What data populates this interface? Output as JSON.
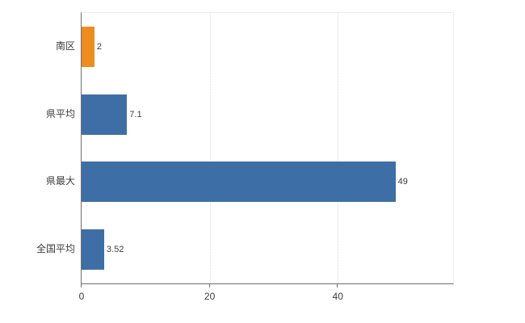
{
  "chart_data": {
    "type": "bar",
    "orientation": "horizontal",
    "title": "",
    "categories": [
      "南区",
      "県平均",
      "県最大",
      "全国平均"
    ],
    "values": [
      2,
      7.1,
      49,
      3.52
    ],
    "value_labels": [
      "2",
      "7.1",
      "49",
      "3.52"
    ],
    "bar_colors": [
      "#ef8c1e",
      "#3d6fa6",
      "#3d6fa6",
      "#3d6fa6"
    ],
    "xlim": [
      0,
      58
    ],
    "xticks": [
      0,
      20,
      40
    ],
    "xtick_labels": [
      "0",
      "20",
      "40"
    ],
    "grid": true,
    "legend": false
  },
  "colors": {
    "axis": "#6f6f6f",
    "grid": "#dcdcdc",
    "frame": "#ececec",
    "text": "#3c3c3c",
    "background": "#ffffff"
  }
}
